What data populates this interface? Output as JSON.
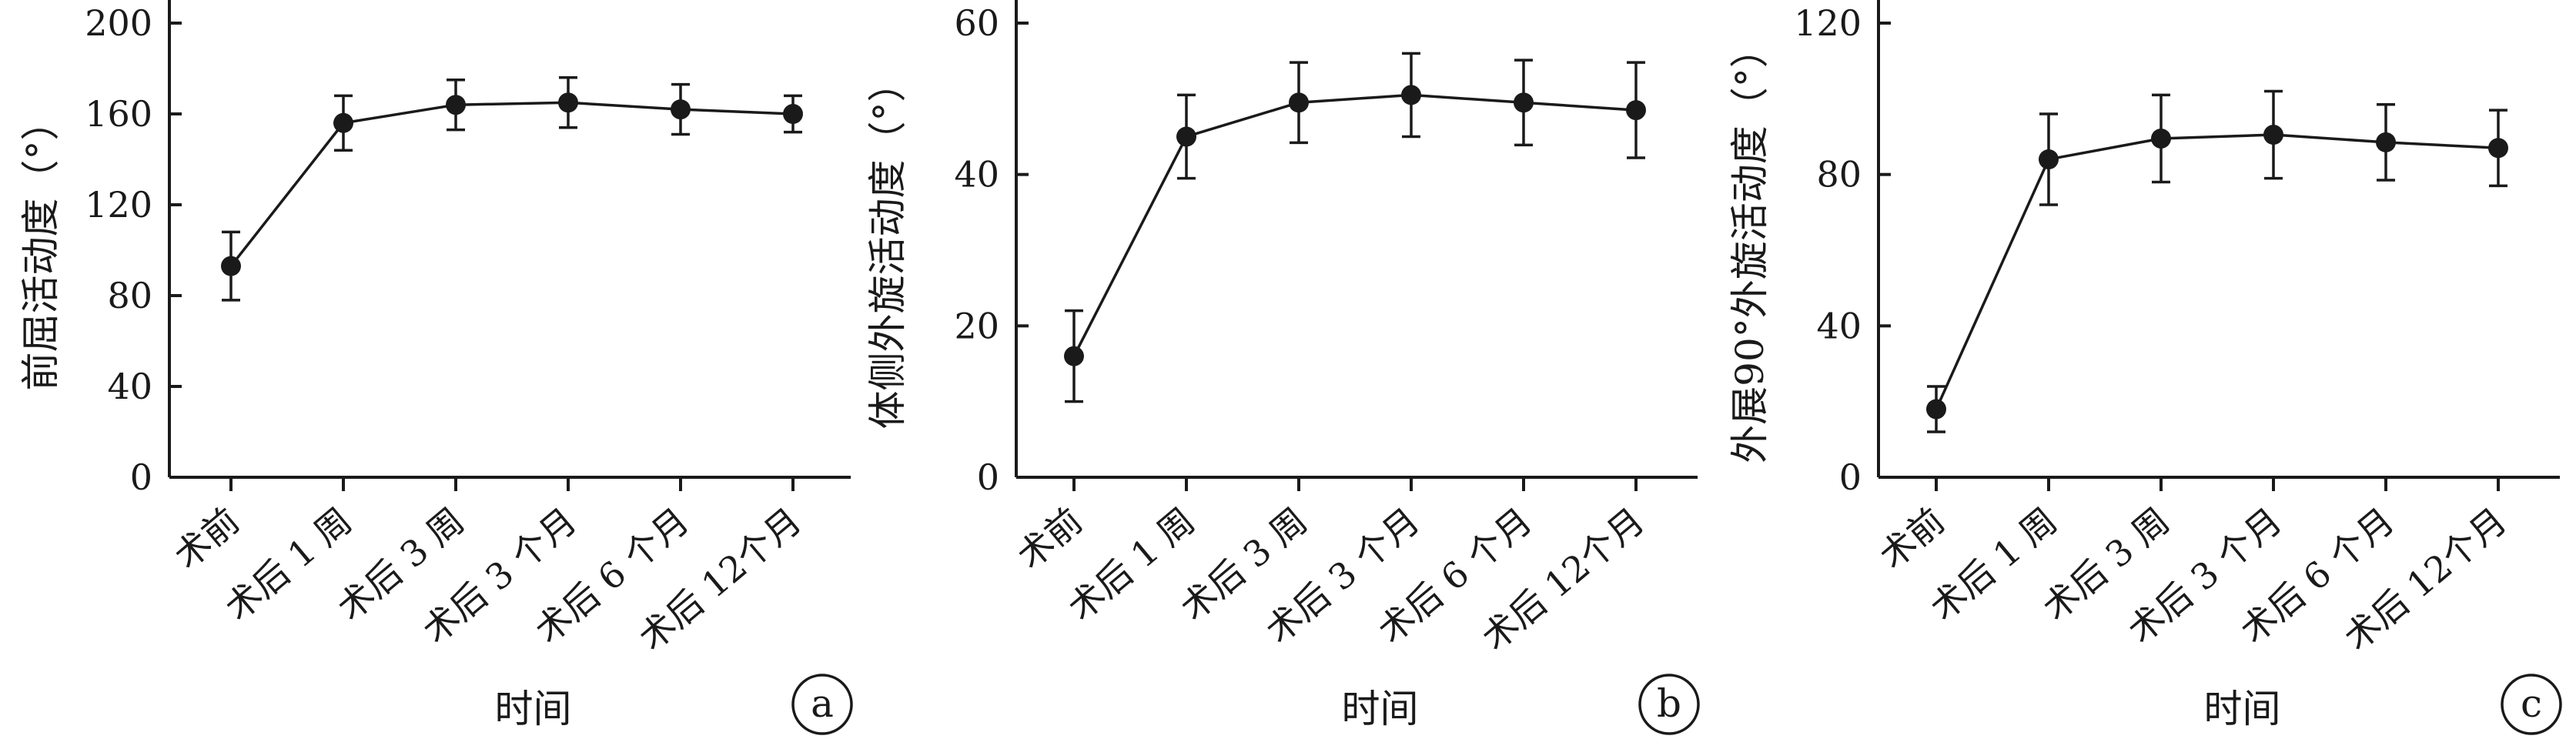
{
  "chart_data": [
    {
      "type": "line",
      "panel_label": "a",
      "xlabel": "时间",
      "ylabel": "前屈活动度（°）",
      "categories": [
        "术前",
        "术后 1 周",
        "术后 3 周",
        "术后 3 个月",
        "术后 6 个月",
        "术后 12个月"
      ],
      "yticks": [
        0,
        40,
        80,
        120,
        160,
        200
      ],
      "ylim": [
        0,
        200
      ],
      "series": [
        {
          "values": [
            93,
            156,
            164,
            165,
            162,
            160
          ],
          "errors": [
            15,
            12,
            11,
            11,
            11,
            8
          ]
        }
      ],
      "grid": false
    },
    {
      "type": "line",
      "panel_label": "b",
      "xlabel": "时间",
      "ylabel": "体侧外旋活动度（°）",
      "categories": [
        "术前",
        "术后 1 周",
        "术后 3 周",
        "术后 3 个月",
        "术后 6 个月",
        "术后 12个月"
      ],
      "yticks": [
        0,
        20,
        40,
        60
      ],
      "ylim": [
        0,
        60
      ],
      "series": [
        {
          "values": [
            16,
            45,
            49.5,
            50.5,
            49.5,
            48.5
          ],
          "errors": [
            6,
            5.5,
            5.3,
            5.5,
            5.6,
            6.3
          ]
        }
      ],
      "grid": false
    },
    {
      "type": "line",
      "panel_label": "c",
      "xlabel": "时间",
      "ylabel": "外展90°外旋活动度（°）",
      "categories": [
        "术前",
        "术后 1 周",
        "术后 3 周",
        "术后 3 个月",
        "术后 6 个月",
        "术后 12个月"
      ],
      "yticks": [
        0,
        40,
        80,
        120
      ],
      "ylim": [
        0,
        120
      ],
      "series": [
        {
          "values": [
            18,
            84,
            89.5,
            90.5,
            88.5,
            87
          ],
          "errors": [
            6,
            12,
            11.5,
            11.5,
            10,
            10
          ]
        }
      ],
      "grid": false
    }
  ]
}
